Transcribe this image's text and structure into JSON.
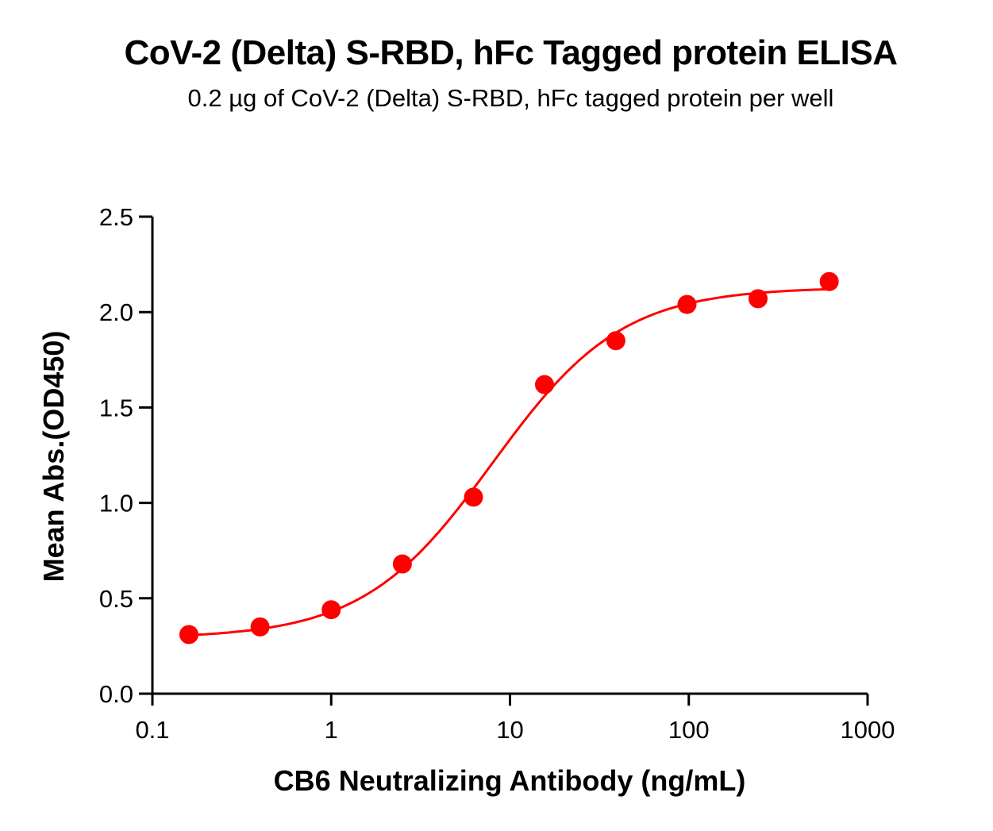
{
  "header": {
    "title": "CoV-2 (Delta) S-RBD, hFc Tagged protein ELISA",
    "subtitle": "0.2 µg of CoV-2 (Delta) S-RBD, hFc tagged protein per well"
  },
  "colors": {
    "series": "#ff0000",
    "axis": "#000000",
    "background": "#ffffff"
  },
  "chart_data": {
    "type": "scatter",
    "title": "CoV-2 (Delta) S-RBD, hFc Tagged protein ELISA",
    "subtitle": "0.2 µg of CoV-2 (Delta) S-RBD, hFc tagged protein per well",
    "xlabel": "CB6 Neutralizing Antibody (ng/mL)",
    "ylabel": "Mean Abs.(OD450)",
    "xscale": "log",
    "xlim": [
      0.1,
      1000
    ],
    "ylim": [
      0.0,
      2.5
    ],
    "xticks": [
      0.1,
      1,
      10,
      100,
      1000
    ],
    "xtick_labels": [
      "0.1",
      "1",
      "10",
      "100",
      "1000"
    ],
    "yticks": [
      0.0,
      0.5,
      1.0,
      1.5,
      2.0,
      2.5
    ],
    "ytick_labels": [
      "0.0",
      "0.5",
      "1.0",
      "1.5",
      "2.0",
      "2.5"
    ],
    "grid": false,
    "legend": null,
    "series": [
      {
        "name": "CB6 Neutralizing Antibody",
        "color": "#ff0000",
        "marker": "circle",
        "x": [
          0.16,
          0.4,
          1.0,
          2.5,
          6.25,
          15.6,
          39.1,
          97.7,
          244,
          610
        ],
        "y": [
          0.31,
          0.35,
          0.44,
          0.68,
          1.03,
          1.62,
          1.85,
          2.04,
          2.07,
          2.16
        ]
      }
    ],
    "fit_curve": {
      "type": "4PL",
      "color": "#ff0000",
      "bottom": 0.29,
      "top": 2.13,
      "ec50": 8.0,
      "hill": 1.2,
      "x_range": [
        0.16,
        610
      ]
    }
  }
}
